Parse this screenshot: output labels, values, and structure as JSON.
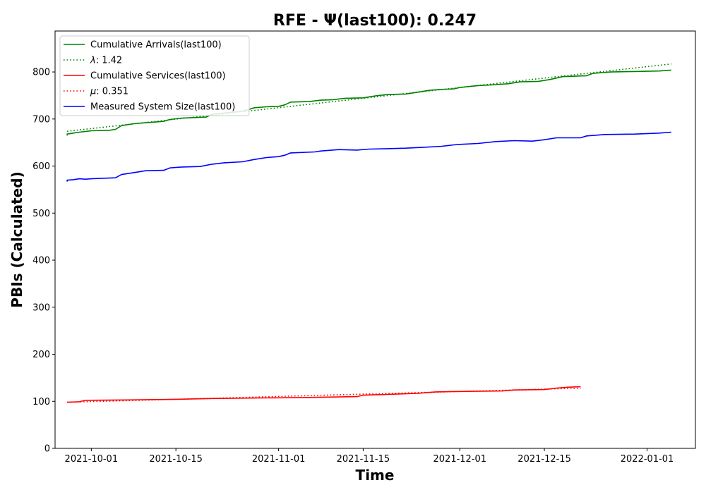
{
  "chart_data": {
    "type": "line",
    "title": "RFE -  Ψ(last100): 0.247",
    "xlabel": "Time",
    "ylabel": "PBIs (Calculated)",
    "ylim": [
      0,
      887
    ],
    "y_ticks": [
      0,
      100,
      200,
      300,
      400,
      500,
      600,
      700,
      800
    ],
    "xlim": [
      "2021-09-25",
      "2022-01-09"
    ],
    "x_ticks": [
      "2021-10-01",
      "2021-10-15",
      "2021-11-01",
      "2021-11-15",
      "2021-12-01",
      "2021-12-15",
      "2022-01-01"
    ],
    "grid": false,
    "legend_position": "upper-left",
    "legend": [
      {
        "label": "Cumulative Arrivals(last100)",
        "color": "#008000",
        "style": "solid"
      },
      {
        "label_symbol": "λ",
        "label_value": ": 1.42",
        "color": "#008000",
        "style": "dotted"
      },
      {
        "label": "Cumulative Services(last100)",
        "color": "#ff0000",
        "style": "solid"
      },
      {
        "label_symbol": "μ",
        "label_value": ": 0.351",
        "color": "#ff0000",
        "style": "dotted"
      },
      {
        "label": "Measured System Size(last100)",
        "color": "#0000ff",
        "style": "solid"
      }
    ],
    "series": [
      {
        "name": "Cumulative Arrivals(last100)",
        "color": "#008000",
        "style": "solid",
        "points": [
          [
            "2021-09-27",
            665
          ],
          [
            "2021-09-27",
            668
          ],
          [
            "2021-09-28",
            670
          ],
          [
            "2021-09-29",
            672
          ],
          [
            "2021-10-01",
            675
          ],
          [
            "2021-10-04",
            676
          ],
          [
            "2021-10-05",
            678
          ],
          [
            "2021-10-06",
            686
          ],
          [
            "2021-10-08",
            690
          ],
          [
            "2021-10-10",
            692
          ],
          [
            "2021-10-12",
            694
          ],
          [
            "2021-10-13",
            695
          ],
          [
            "2021-10-14",
            699
          ],
          [
            "2021-10-16",
            702
          ],
          [
            "2021-10-18",
            703
          ],
          [
            "2021-10-20",
            704
          ],
          [
            "2021-10-21",
            710
          ],
          [
            "2021-10-24",
            714
          ],
          [
            "2021-10-26",
            717
          ],
          [
            "2021-10-27",
            720
          ],
          [
            "2021-10-28",
            724
          ],
          [
            "2021-10-30",
            726
          ],
          [
            "2021-11-01",
            727
          ],
          [
            "2021-11-02",
            730
          ],
          [
            "2021-11-03",
            736
          ],
          [
            "2021-11-06",
            737
          ],
          [
            "2021-11-08",
            740
          ],
          [
            "2021-11-10",
            741
          ],
          [
            "2021-11-12",
            744
          ],
          [
            "2021-11-15",
            745
          ],
          [
            "2021-11-17",
            749
          ],
          [
            "2021-11-19",
            752
          ],
          [
            "2021-11-22",
            753
          ],
          [
            "2021-11-24",
            757
          ],
          [
            "2021-11-26",
            761
          ],
          [
            "2021-11-28",
            763
          ],
          [
            "2021-11-30",
            764
          ],
          [
            "2021-12-01",
            767
          ],
          [
            "2021-12-04",
            771
          ],
          [
            "2021-12-07",
            773
          ],
          [
            "2021-12-09",
            775
          ],
          [
            "2021-12-11",
            779
          ],
          [
            "2021-12-14",
            780
          ],
          [
            "2021-12-16",
            784
          ],
          [
            "2021-12-18",
            790
          ],
          [
            "2021-12-22",
            792
          ],
          [
            "2021-12-23",
            797
          ],
          [
            "2021-12-26",
            800
          ],
          [
            "2021-12-30",
            801
          ],
          [
            "2022-01-03",
            802
          ],
          [
            "2022-01-05",
            804
          ]
        ]
      },
      {
        "name": "λ: 1.42",
        "color": "#008000",
        "style": "dotted",
        "points": [
          [
            "2021-09-27",
            674
          ],
          [
            "2022-01-05",
            817
          ]
        ]
      },
      {
        "name": "Cumulative Services(last100)",
        "color": "#ff0000",
        "style": "solid",
        "points": [
          [
            "2021-09-27",
            98
          ],
          [
            "2021-09-29",
            99
          ],
          [
            "2021-09-30",
            102
          ],
          [
            "2021-10-07",
            103
          ],
          [
            "2021-10-14",
            104
          ],
          [
            "2021-10-21",
            106
          ],
          [
            "2021-10-28",
            107
          ],
          [
            "2021-11-05",
            108
          ],
          [
            "2021-11-14",
            110
          ],
          [
            "2021-11-15",
            113
          ],
          [
            "2021-11-20",
            115
          ],
          [
            "2021-11-24",
            117
          ],
          [
            "2021-11-27",
            120
          ],
          [
            "2021-12-02",
            121
          ],
          [
            "2021-12-08",
            122
          ],
          [
            "2021-12-10",
            124
          ],
          [
            "2021-12-15",
            125
          ],
          [
            "2021-12-17",
            128
          ],
          [
            "2021-12-19",
            130
          ],
          [
            "2021-12-21",
            131
          ]
        ]
      },
      {
        "name": "μ: 0.351",
        "color": "#ff0000",
        "style": "dotted",
        "points": [
          [
            "2021-09-27",
            98
          ],
          [
            "2021-12-21",
            128
          ]
        ]
      },
      {
        "name": "Measured System Size(last100)",
        "color": "#0000ff",
        "style": "solid",
        "points": [
          [
            "2021-09-27",
            567
          ],
          [
            "2021-09-27",
            570
          ],
          [
            "2021-09-28",
            571
          ],
          [
            "2021-09-29",
            573
          ],
          [
            "2021-09-30",
            572
          ],
          [
            "2021-10-01",
            573
          ],
          [
            "2021-10-05",
            575
          ],
          [
            "2021-10-06",
            582
          ],
          [
            "2021-10-08",
            586
          ],
          [
            "2021-10-10",
            590
          ],
          [
            "2021-10-13",
            591
          ],
          [
            "2021-10-14",
            596
          ],
          [
            "2021-10-16",
            598
          ],
          [
            "2021-10-19",
            599
          ],
          [
            "2021-10-21",
            604
          ],
          [
            "2021-10-23",
            607
          ],
          [
            "2021-10-26",
            609
          ],
          [
            "2021-10-28",
            614
          ],
          [
            "2021-10-30",
            618
          ],
          [
            "2021-11-01",
            620
          ],
          [
            "2021-11-02",
            623
          ],
          [
            "2021-11-03",
            628
          ],
          [
            "2021-11-07",
            630
          ],
          [
            "2021-11-08",
            632
          ],
          [
            "2021-11-11",
            635
          ],
          [
            "2021-11-14",
            634
          ],
          [
            "2021-11-16",
            636
          ],
          [
            "2021-11-19",
            637
          ],
          [
            "2021-11-22",
            638
          ],
          [
            "2021-11-25",
            640
          ],
          [
            "2021-11-28",
            642
          ],
          [
            "2021-11-30",
            645
          ],
          [
            "2021-12-01",
            646
          ],
          [
            "2021-12-04",
            648
          ],
          [
            "2021-12-07",
            652
          ],
          [
            "2021-12-10",
            654
          ],
          [
            "2021-12-13",
            653
          ],
          [
            "2021-12-15",
            656
          ],
          [
            "2021-12-17",
            660
          ],
          [
            "2021-12-21",
            660
          ],
          [
            "2021-12-22",
            664
          ],
          [
            "2021-12-25",
            667
          ],
          [
            "2021-12-30",
            668
          ],
          [
            "2022-01-03",
            670
          ],
          [
            "2022-01-05",
            672
          ]
        ]
      }
    ]
  }
}
